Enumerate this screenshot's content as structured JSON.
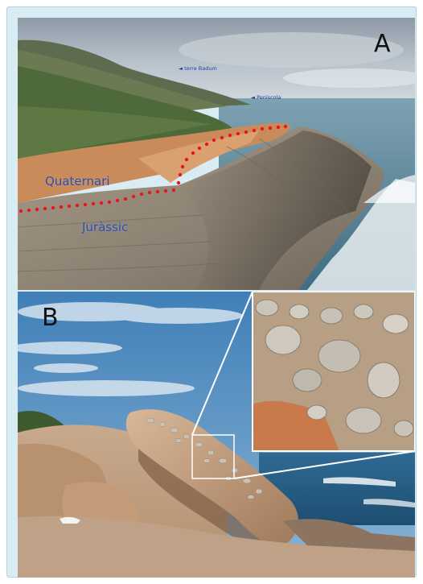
{
  "figure": {
    "panel_a": {
      "letter": "A",
      "unit_upper": "Quaternari",
      "unit_lower": "Juràssic",
      "place_tower": "torre Badum",
      "place_town": "Peníscola",
      "contact_color": "#e8181a",
      "label_color": "#2a4fb0"
    },
    "panel_b": {
      "letter": "B"
    },
    "frame_color": "#d9ecf4"
  }
}
